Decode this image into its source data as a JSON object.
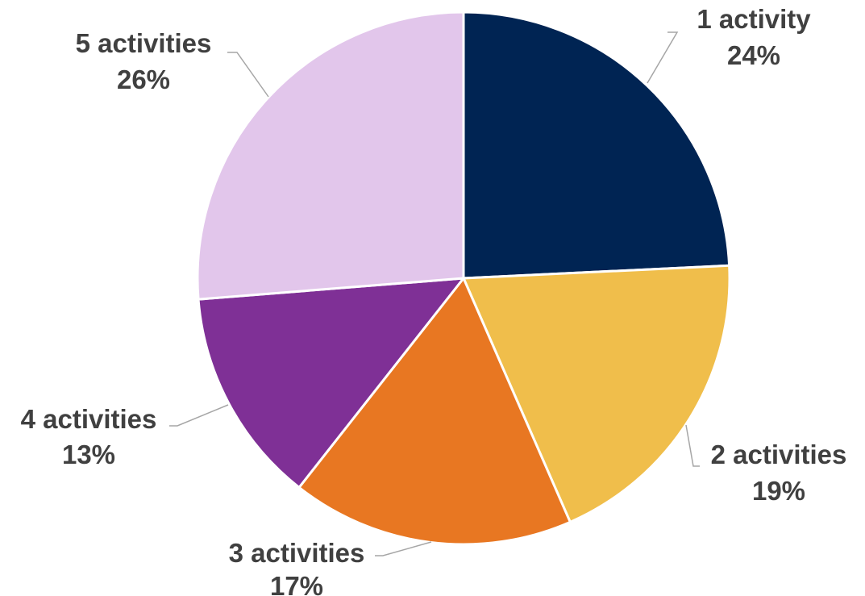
{
  "chart_data": {
    "type": "pie",
    "slices": [
      {
        "label": "1 activity",
        "value": 24,
        "value_label": "24%",
        "color": "#002453"
      },
      {
        "label": "2 activities",
        "value": 19,
        "value_label": "19%",
        "color": "#F0BE4B"
      },
      {
        "label": "3 activities",
        "value": 17,
        "value_label": "17%",
        "color": "#E87722"
      },
      {
        "label": "4 activities",
        "value": 13,
        "value_label": "13%",
        "color": "#7F3096"
      },
      {
        "label": "5 activities",
        "value": 26,
        "value_label": "26%",
        "color": "#E2C6EB"
      }
    ],
    "start_angle": "12 o'clock",
    "direction": "clockwise",
    "legend": "none",
    "data_labels": "outside-with-leader-lines"
  }
}
